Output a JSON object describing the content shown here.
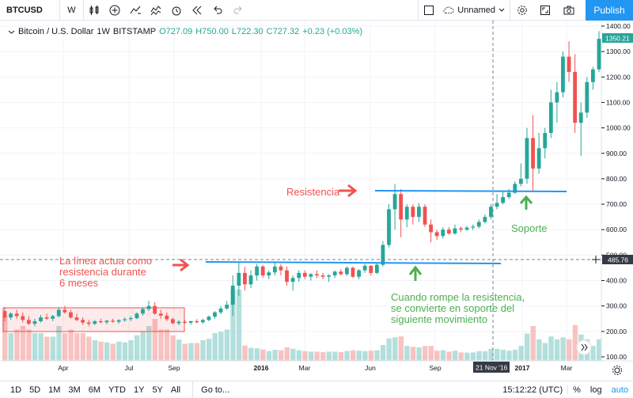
{
  "toolbar": {
    "symbol": "BTCUSD",
    "resolution": "W",
    "layout_name": "Unnamed",
    "publish_label": "Publish",
    "icons": [
      "candles-icon",
      "add-indicator-icon",
      "compare-icon",
      "indicators-icon",
      "alert-icon",
      "replay-icon",
      "undo-icon",
      "redo-icon",
      "layout-icon",
      "cloud-icon",
      "settings-icon",
      "fullscreen-icon",
      "camera-icon"
    ]
  },
  "legend": {
    "title": "Bitcoin / U.S. Dollar",
    "interval": "1W",
    "exchange": "BITSTAMP",
    "open": "O727.09",
    "high": "H750.00",
    "low": "L722.30",
    "close": "C727.32",
    "change": "+0.23 (+0.03%)"
  },
  "annotations": {
    "resistencia": "Resistencia",
    "line_text_1": "La línea actua como",
    "line_text_2": "resistencia durante",
    "line_text_3": "6 meses",
    "soporte": "Soporte",
    "break_text_1": "Cuando rompe la  resistencia,",
    "break_text_2": "se convierte en soporte del",
    "break_text_3": "siguiente movimiento"
  },
  "price_axis": {
    "labels": [
      "1400.00",
      "1300.00",
      "1200.00",
      "1100.00",
      "1000.00",
      "900.00",
      "800.00",
      "700.00",
      "600.00",
      "500.00",
      "400.00",
      "300.00",
      "200.00",
      "100.00"
    ],
    "last_price": "1350.21",
    "crosshair_price": "485.76"
  },
  "time_axis": {
    "labels": [
      "Apr",
      "Jul",
      "Sep",
      "2016",
      "Mar",
      "Jun",
      "Sep",
      "2017",
      "Mar"
    ],
    "crosshair_date": "21 Nov '16"
  },
  "bottom": {
    "ranges": [
      "1D",
      "5D",
      "1M",
      "3M",
      "6M",
      "YTD",
      "1Y",
      "5Y",
      "All"
    ],
    "goto": "Go to...",
    "time": "15:12:22 (UTC)",
    "percent": "%",
    "log": "log",
    "auto": "auto"
  },
  "colors": {
    "up": "#26a69a",
    "down": "#ef5350",
    "accent": "#2196f3",
    "annotation_red": "#ef5350",
    "annotation_green": "#4caf50"
  },
  "chart_data": {
    "type": "candlestick",
    "title": "Bitcoin / U.S. Dollar",
    "ylim": [
      100,
      1400
    ],
    "x_ticks": [
      "Apr",
      "Jul",
      "Sep",
      "2016",
      "Mar",
      "Jun",
      "Sep",
      "2017",
      "Mar"
    ],
    "y_ticks": [
      100,
      200,
      300,
      400,
      500,
      600,
      700,
      800,
      900,
      1000,
      1100,
      1200,
      1300,
      1400
    ],
    "series": [
      {
        "name": "",
        "ohlc": [
          [
            280,
            295,
            240,
            255
          ],
          [
            255,
            275,
            245,
            270
          ],
          [
            270,
            285,
            250,
            260
          ],
          [
            260,
            275,
            235,
            245
          ],
          [
            245,
            260,
            225,
            230
          ],
          [
            230,
            250,
            220,
            240
          ],
          [
            240,
            265,
            235,
            255
          ],
          [
            255,
            270,
            245,
            250
          ],
          [
            250,
            265,
            240,
            260
          ],
          [
            260,
            295,
            255,
            285
          ],
          [
            285,
            300,
            270,
            275
          ],
          [
            275,
            285,
            250,
            255
          ],
          [
            255,
            270,
            240,
            245
          ],
          [
            245,
            255,
            225,
            235
          ],
          [
            235,
            245,
            220,
            230
          ],
          [
            230,
            245,
            225,
            240
          ],
          [
            240,
            250,
            232,
            236
          ],
          [
            236,
            245,
            228,
            242
          ],
          [
            242,
            250,
            235,
            238
          ],
          [
            238,
            248,
            230,
            244
          ],
          [
            244,
            255,
            238,
            248
          ],
          [
            248,
            260,
            240,
            252
          ],
          [
            252,
            275,
            248,
            270
          ],
          [
            270,
            295,
            262,
            288
          ],
          [
            288,
            320,
            280,
            300
          ],
          [
            300,
            315,
            265,
            270
          ],
          [
            270,
            285,
            250,
            262
          ],
          [
            262,
            275,
            240,
            248
          ],
          [
            248,
            255,
            228,
            232
          ],
          [
            232,
            245,
            224,
            238
          ],
          [
            238,
            245,
            230,
            234
          ],
          [
            234,
            242,
            226,
            240
          ],
          [
            240,
            248,
            232,
            236
          ],
          [
            236,
            250,
            230,
            245
          ],
          [
            245,
            262,
            240,
            258
          ],
          [
            258,
            280,
            250,
            275
          ],
          [
            275,
            300,
            268,
            290
          ],
          [
            290,
            320,
            285,
            305
          ],
          [
            305,
            420,
            260,
            380
          ],
          [
            380,
            470,
            340,
            430
          ],
          [
            430,
            455,
            360,
            385
          ],
          [
            385,
            440,
            370,
            420
          ],
          [
            420,
            465,
            400,
            455
          ],
          [
            455,
            462,
            410,
            420
          ],
          [
            420,
            440,
            405,
            432
          ],
          [
            432,
            470,
            420,
            455
          ],
          [
            455,
            465,
            420,
            440
          ],
          [
            440,
            455,
            380,
            395
          ],
          [
            395,
            420,
            360,
            410
          ],
          [
            410,
            440,
            395,
            430
          ],
          [
            430,
            440,
            405,
            415
          ],
          [
            415,
            430,
            400,
            425
          ],
          [
            425,
            440,
            410,
            420
          ],
          [
            420,
            430,
            405,
            415
          ],
          [
            415,
            425,
            395,
            420
          ],
          [
            420,
            440,
            410,
            435
          ],
          [
            435,
            445,
            420,
            425
          ],
          [
            425,
            455,
            418,
            450
          ],
          [
            450,
            455,
            410,
            415
          ],
          [
            415,
            445,
            405,
            440
          ],
          [
            440,
            465,
            430,
            458
          ],
          [
            458,
            460,
            420,
            430
          ],
          [
            430,
            470,
            425,
            462
          ],
          [
            462,
            555,
            455,
            540
          ],
          [
            540,
            700,
            530,
            680
          ],
          [
            680,
            780,
            600,
            740
          ],
          [
            740,
            760,
            570,
            640
          ],
          [
            640,
            700,
            610,
            690
          ],
          [
            690,
            700,
            620,
            650
          ],
          [
            650,
            705,
            630,
            690
          ],
          [
            690,
            700,
            610,
            620
          ],
          [
            620,
            640,
            550,
            590
          ],
          [
            590,
            600,
            560,
            575
          ],
          [
            575,
            610,
            565,
            600
          ],
          [
            600,
            610,
            580,
            585
          ],
          [
            585,
            620,
            580,
            605
          ],
          [
            605,
            612,
            590,
            600
          ],
          [
            600,
            615,
            595,
            608
          ],
          [
            608,
            620,
            598,
            612
          ],
          [
            612,
            640,
            605,
            630
          ],
          [
            630,
            660,
            625,
            650
          ],
          [
            650,
            700,
            640,
            690
          ],
          [
            690,
            740,
            680,
            705
          ],
          [
            705,
            750,
            700,
            728
          ],
          [
            728,
            760,
            720,
            745
          ],
          [
            745,
            790,
            740,
            780
          ],
          [
            780,
            860,
            770,
            800
          ],
          [
            800,
            1000,
            780,
            960
          ],
          [
            960,
            1050,
            750,
            840
          ],
          [
            840,
            980,
            820,
            920
          ],
          [
            920,
            1000,
            880,
            980
          ],
          [
            980,
            1150,
            960,
            1100
          ],
          [
            1100,
            1180,
            1020,
            1140
          ],
          [
            1140,
            1300,
            1120,
            1280
          ],
          [
            1280,
            1340,
            1180,
            1220
          ],
          [
            1220,
            1290,
            980,
            1020
          ],
          [
            1020,
            1100,
            890,
            1060
          ],
          [
            1060,
            1200,
            1040,
            1180
          ],
          [
            1180,
            1240,
            1150,
            1230
          ],
          [
            1230,
            1380,
            1220,
            1350
          ]
        ]
      }
    ]
  }
}
